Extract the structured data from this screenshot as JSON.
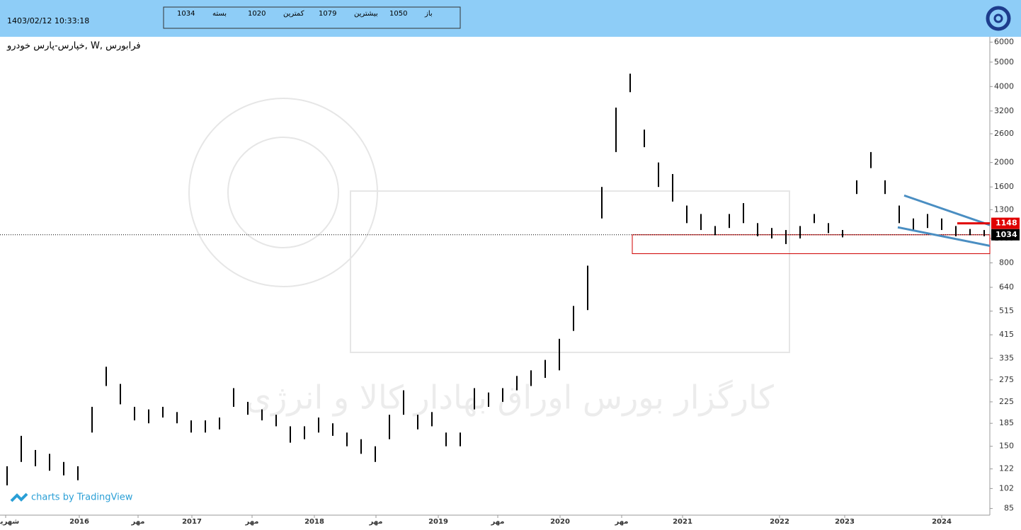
{
  "header": {
    "timestamp": "1403/02/12 10:33:18",
    "quote": [
      {
        "label": "بسته",
        "value": 1034
      },
      {
        "label": "کمترین",
        "value": 1020
      },
      {
        "label": "بیشترین",
        "value": 1079
      },
      {
        "label": "باز",
        "value": 1050
      }
    ]
  },
  "chart_data": {
    "type": "hilo",
    "title": "خپارس-پارس خودرو, W, فرابورس",
    "credit": "charts by TradingView",
    "watermark": "کارگزار بورس اوراق بهادار کالا و انرژی",
    "color": "#000000",
    "log_scale": true,
    "x": [
      0,
      1,
      2,
      3,
      4,
      5,
      6,
      7,
      8,
      9,
      10,
      11,
      12,
      13,
      14,
      15,
      16,
      17,
      18,
      19,
      20,
      21,
      22,
      23,
      24,
      25,
      26,
      27,
      28,
      29,
      30,
      31,
      32,
      33,
      34,
      35,
      36,
      37,
      38,
      39,
      40,
      41,
      42,
      43,
      44,
      45,
      46,
      47,
      48,
      49,
      50,
      51,
      52,
      53,
      54,
      55,
      56,
      57,
      58,
      59,
      60,
      61,
      62,
      63,
      64,
      65,
      66,
      67,
      68,
      69
    ],
    "high": [
      125,
      165,
      145,
      140,
      130,
      125,
      215,
      310,
      265,
      215,
      210,
      215,
      205,
      190,
      190,
      195,
      255,
      225,
      210,
      200,
      180,
      180,
      195,
      185,
      170,
      160,
      150,
      200,
      250,
      200,
      205,
      170,
      170,
      255,
      245,
      255,
      285,
      300,
      330,
      400,
      540,
      780,
      1600,
      3300,
      4500,
      2700,
      2000,
      1800,
      1350,
      1250,
      1120,
      1250,
      1380,
      1150,
      1100,
      1080,
      1120,
      1250,
      1150,
      1080,
      1700,
      2200,
      1700,
      1350,
      1200,
      1250,
      1200,
      1120,
      1090,
      1080
    ],
    "low": [
      105,
      130,
      125,
      120,
      115,
      110,
      170,
      260,
      220,
      190,
      185,
      195,
      185,
      170,
      170,
      175,
      215,
      200,
      190,
      180,
      155,
      160,
      170,
      165,
      150,
      140,
      130,
      160,
      200,
      175,
      180,
      150,
      150,
      210,
      215,
      225,
      250,
      260,
      280,
      300,
      430,
      520,
      1200,
      2200,
      3800,
      2300,
      1600,
      1400,
      1150,
      1080,
      1030,
      1100,
      1150,
      1020,
      1000,
      950,
      1000,
      1150,
      1050,
      1010,
      1500,
      1900,
      1500,
      1150,
      1080,
      1100,
      1080,
      1020,
      1030,
      1020
    ],
    "xlim": [
      -0.5,
      69.4
    ],
    "xticks": [
      {
        "value": -0.1,
        "label": "شهریور"
      },
      {
        "value": 5.1,
        "label": "2016"
      },
      {
        "value": 9.25,
        "label": "مهر"
      },
      {
        "value": 13.05,
        "label": "2017"
      },
      {
        "value": 17.3,
        "label": "مهر"
      },
      {
        "value": 21.7,
        "label": "2018"
      },
      {
        "value": 26.05,
        "label": "مهر"
      },
      {
        "value": 30.45,
        "label": "2019"
      },
      {
        "value": 34.65,
        "label": "مهر"
      },
      {
        "value": 39.05,
        "label": "2020"
      },
      {
        "value": 43.4,
        "label": "مهر"
      },
      {
        "value": 47.7,
        "label": "2021"
      },
      {
        "value": 54.55,
        "label": "2022"
      },
      {
        "value": 59.15,
        "label": "2023"
      },
      {
        "value": 66,
        "label": "2024"
      }
    ],
    "ylim": [
      80,
      6300
    ],
    "yticks": [
      85,
      102,
      122,
      150,
      185,
      225,
      275,
      335,
      415,
      515,
      640,
      800,
      1000,
      1300,
      1600,
      2000,
      2600,
      3200,
      4000,
      5000,
      6000
    ],
    "last_price": 1034,
    "resistance": {
      "value": 1148,
      "x": [
        67.1,
        69.4
      ]
    },
    "support_zone": {
      "x": [
        44.15,
        69.4
      ],
      "y": [
        870,
        1034
      ]
    },
    "wedge": [
      {
        "x": [
          63.35,
          69.4
        ],
        "y": [
          1480,
          1130
        ]
      },
      {
        "x": [
          62.9,
          69.4
        ],
        "y": [
          1107,
          935
        ]
      }
    ]
  }
}
